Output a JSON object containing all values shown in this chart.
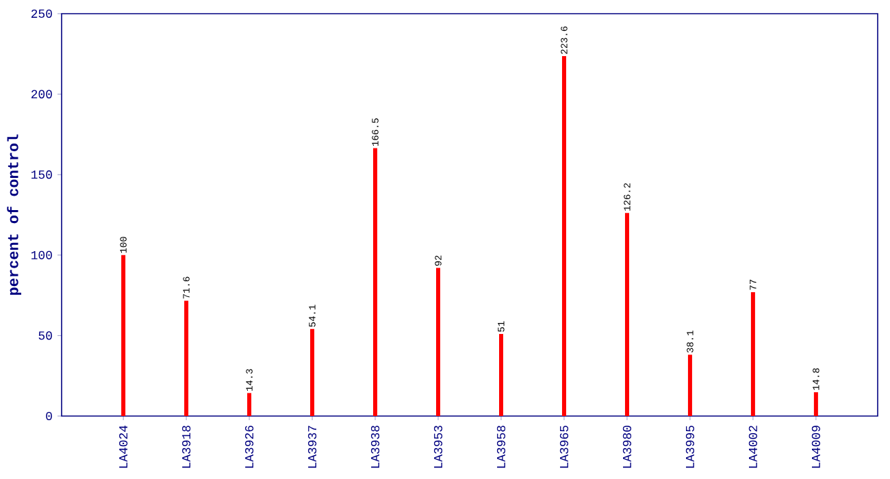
{
  "chart_data": {
    "type": "bar",
    "ylabel": "percent of control",
    "categories": [
      "LA4024",
      "LA3918",
      "LA3926",
      "LA3937",
      "LA3938",
      "LA3953",
      "LA3958",
      "LA3965",
      "LA3980",
      "LA3995",
      "LA4002",
      "LA4009"
    ],
    "values": [
      100,
      71.6,
      14.3,
      54.1,
      166.5,
      92,
      51,
      223.6,
      126.2,
      38.1,
      77,
      14.8
    ],
    "color": "#ff0000",
    "ylim": [
      0,
      250
    ],
    "yticks": [
      0,
      50,
      100,
      150,
      200,
      250
    ],
    "data_labels": true
  }
}
